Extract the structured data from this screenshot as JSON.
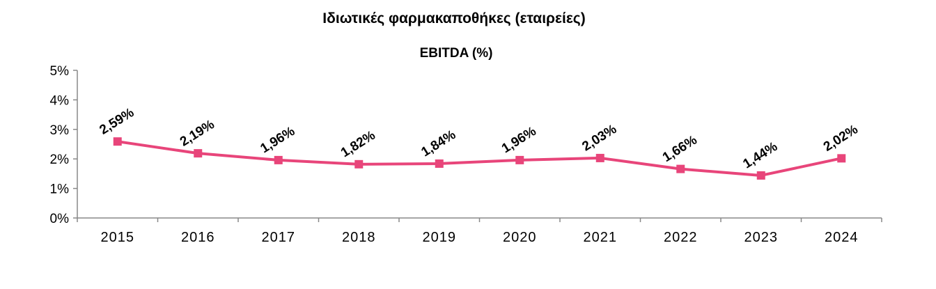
{
  "page_title": "Ιδιωτικές φαρμακαποθήκες (εταιρείες)",
  "chart_data": {
    "type": "line",
    "title": "EBITDA (%)",
    "xlabel": "",
    "ylabel": "",
    "categories": [
      "2015",
      "2016",
      "2017",
      "2018",
      "2019",
      "2020",
      "2021",
      "2022",
      "2023",
      "2024"
    ],
    "series": [
      {
        "values": [
          2.59,
          2.19,
          1.96,
          1.82,
          1.84,
          1.96,
          2.03,
          1.66,
          1.44,
          2.02
        ],
        "labels": [
          "2,59%",
          "2,19%",
          "1,96%",
          "1,82%",
          "1,84%",
          "1,96%",
          "2,03%",
          "1,66%",
          "1,44%",
          "2,02%"
        ],
        "color": "#e8457a"
      }
    ],
    "ylim": [
      0,
      5
    ],
    "yticks": [
      "0%",
      "1%",
      "2%",
      "3%",
      "4%",
      "5%"
    ],
    "grid": false,
    "legend": "none",
    "marker": "square",
    "data_label_rotation": "angled"
  }
}
